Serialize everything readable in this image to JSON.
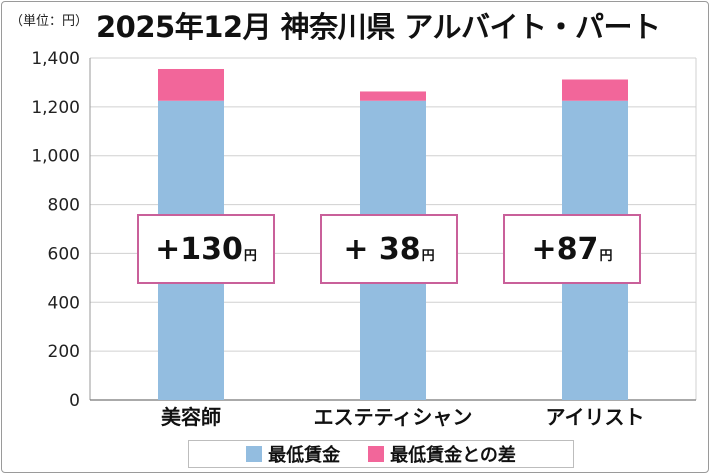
{
  "unit_label": "（単位：円）",
  "title": "2025年12月 神奈川県 アルバイト・パート",
  "colors": {
    "min_wage": "#93bde0",
    "diff": "#f2669a",
    "box_border": "#c9609a"
  },
  "chart_data": {
    "type": "bar",
    "stacked": true,
    "categories": [
      "美容師",
      "エステティシャン",
      "アイリスト"
    ],
    "series": [
      {
        "name": "最低賃金",
        "values": [
          1225,
          1225,
          1225
        ]
      },
      {
        "name": "最低賃金との差",
        "values": [
          130,
          38,
          87
        ]
      }
    ],
    "ylim": [
      0,
      1400
    ],
    "yticks": [
      "0",
      "200",
      "400",
      "600",
      "800",
      "1,000",
      "1,200",
      "1,400"
    ],
    "annotations": [
      {
        "sign": "+",
        "value": "130",
        "unit": "円"
      },
      {
        "sign": "+ ",
        "value": "38",
        "unit": "円"
      },
      {
        "sign": "+",
        "value": "87",
        "unit": "円"
      }
    ],
    "legend_position": "bottom"
  }
}
